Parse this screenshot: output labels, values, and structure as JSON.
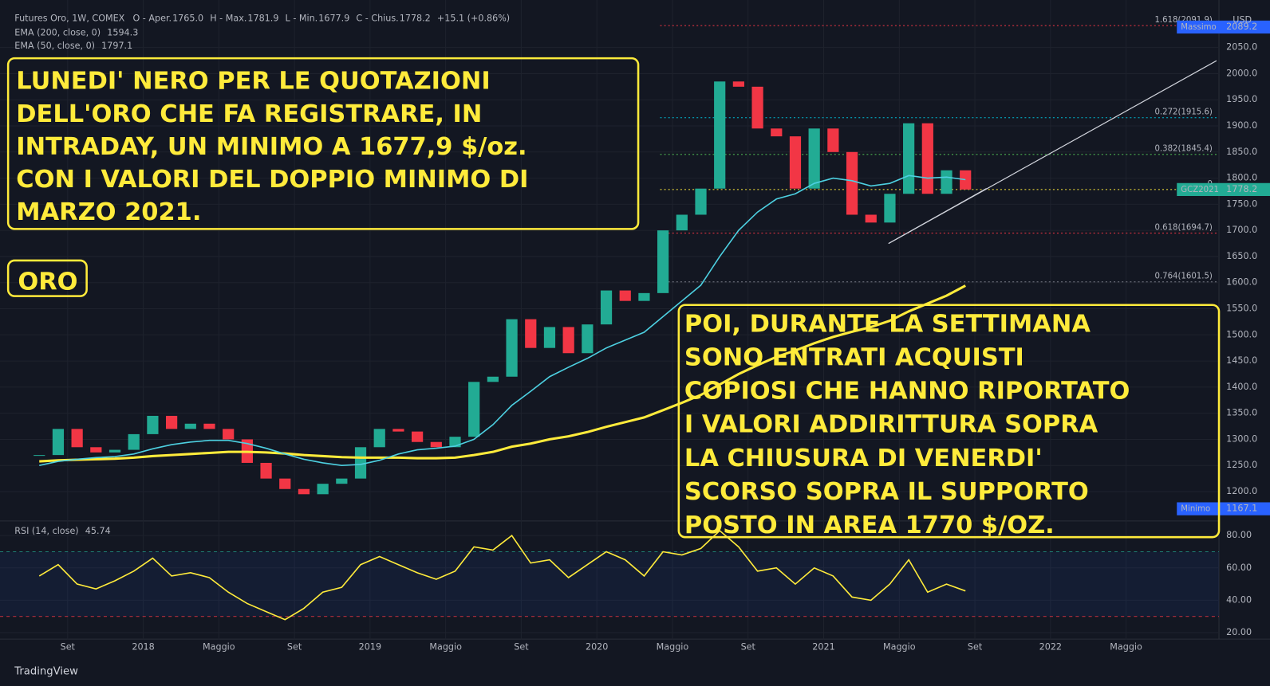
{
  "header": {
    "symbol": "Futures Oro, 1W, COMEX",
    "ohlc": [
      "O - Aper.",
      "1765.0",
      "H - Max.",
      "1781.9",
      "L - Min.",
      "1677.9",
      "C - Chius.",
      "1778.2",
      "+15.1 (+0.86%)"
    ],
    "currency": "USD",
    "brand": "TradingView"
  },
  "chart_data": [
    {
      "type": "candlestick",
      "x": [
        "2017-07",
        "2017-08",
        "2017-09",
        "2017-10",
        "2017-11",
        "2017-12",
        "2018-01",
        "2018-02",
        "2018-03",
        "2018-04",
        "2018-05",
        "2018-06",
        "2018-07",
        "2018-08",
        "2018-09",
        "2018-10",
        "2018-11",
        "2018-12",
        "2019-01",
        "2019-02",
        "2019-03",
        "2019-04",
        "2019-05",
        "2019-06",
        "2019-07",
        "2019-08",
        "2019-09",
        "2019-10",
        "2019-11",
        "2019-12",
        "2020-01",
        "2020-02",
        "2020-03",
        "2020-04",
        "2020-05",
        "2020-06",
        "2020-07",
        "2020-08",
        "2020-09",
        "2020-10",
        "2020-11",
        "2020-12",
        "2021-01",
        "2021-02",
        "2021-03",
        "2021-04",
        "2021-05",
        "2021-06",
        "2021-07",
        "2021-08"
      ],
      "close": [
        1270,
        1320,
        1285,
        1275,
        1280,
        1310,
        1345,
        1320,
        1330,
        1320,
        1300,
        1255,
        1225,
        1205,
        1195,
        1215,
        1225,
        1285,
        1320,
        1315,
        1295,
        1285,
        1305,
        1410,
        1420,
        1530,
        1475,
        1515,
        1465,
        1520,
        1585,
        1565,
        1580,
        1700,
        1730,
        1780,
        1985,
        1975,
        1895,
        1880,
        1780,
        1895,
        1850,
        1730,
        1715,
        1770,
        1905,
        1770,
        1815,
        1778.2
      ],
      "up_color": "#22ab94",
      "down_color": "#f23645",
      "series": [
        {
          "name": "EMA (200, close, 0)",
          "color": "#ffeb3b",
          "values": [
            1258,
            1260,
            1261,
            1262,
            1263,
            1265,
            1268,
            1270,
            1272,
            1274,
            1276,
            1276,
            1275,
            1273,
            1270,
            1268,
            1266,
            1265,
            1265,
            1265,
            1264,
            1264,
            1265,
            1270,
            1276,
            1286,
            1292,
            1300,
            1306,
            1314,
            1324,
            1333,
            1342,
            1356,
            1370,
            1385,
            1405,
            1425,
            1442,
            1458,
            1470,
            1484,
            1496,
            1506,
            1515,
            1527,
            1545,
            1560,
            1575,
            1594.3
          ]
        },
        {
          "name": "EMA (50, close, 0)",
          "color": "#4dd0e1",
          "values": [
            1250,
            1258,
            1262,
            1265,
            1267,
            1272,
            1282,
            1290,
            1295,
            1298,
            1298,
            1292,
            1283,
            1272,
            1262,
            1255,
            1250,
            1252,
            1260,
            1272,
            1280,
            1283,
            1287,
            1300,
            1328,
            1365,
            1392,
            1420,
            1438,
            1455,
            1475,
            1490,
            1505,
            1535,
            1565,
            1595,
            1650,
            1700,
            1735,
            1760,
            1770,
            1790,
            1800,
            1795,
            1785,
            1790,
            1805,
            1800,
            1802,
            1797.1
          ]
        }
      ],
      "xlim": [
        "2017-06",
        "2022-10"
      ],
      "xticks": [
        {
          "value": "2017-09",
          "label": "Set"
        },
        {
          "value": "2018-01",
          "label": "2018"
        },
        {
          "value": "2018-05",
          "label": "Maggio"
        },
        {
          "value": "2018-09",
          "label": "Set"
        },
        {
          "value": "2019-01",
          "label": "2019"
        },
        {
          "value": "2019-05",
          "label": "Maggio"
        },
        {
          "value": "2019-09",
          "label": "Set"
        },
        {
          "value": "2020-01",
          "label": "2020"
        },
        {
          "value": "2020-05",
          "label": "Maggio"
        },
        {
          "value": "2020-09",
          "label": "Set"
        },
        {
          "value": "2021-01",
          "label": "2021"
        },
        {
          "value": "2021-05",
          "label": "Maggio"
        },
        {
          "value": "2021-09",
          "label": "Set"
        },
        {
          "value": "2022-01",
          "label": "2022"
        },
        {
          "value": "2022-05",
          "label": "Maggio"
        }
      ],
      "ylim": [
        1150,
        2110
      ],
      "yticks": [
        {
          "value": 1200,
          "label": "1200.0"
        },
        {
          "value": 1250,
          "label": "1250.0"
        },
        {
          "value": 1300,
          "label": "1300.0"
        },
        {
          "value": 1350,
          "label": "1350.0"
        },
        {
          "value": 1400,
          "label": "1400.0"
        },
        {
          "value": 1450,
          "label": "1450.0"
        },
        {
          "value": 1500,
          "label": "1500.0"
        },
        {
          "value": 1550,
          "label": "1550.0"
        },
        {
          "value": 1600,
          "label": "1600.0"
        },
        {
          "value": 1650,
          "label": "1650.0"
        },
        {
          "value": 1700,
          "label": "1700.0"
        },
        {
          "value": 1750,
          "label": "1750.0"
        },
        {
          "value": 1800,
          "label": "1800.0"
        },
        {
          "value": 1850,
          "label": "1850.0"
        },
        {
          "value": 1900,
          "label": "1900.0"
        },
        {
          "value": 1950,
          "label": "1950.0"
        },
        {
          "value": 2000,
          "label": "2000.0"
        },
        {
          "value": 2050,
          "label": "2050.0"
        }
      ],
      "grid": true,
      "fib_levels": [
        {
          "label": "1.618(2091.9)",
          "value": 2091.9,
          "color": "#f23645"
        },
        {
          "label": "0.272(1915.6)",
          "value": 1915.6,
          "color": "#00bcd4"
        },
        {
          "label": "0.382(1845.4)",
          "value": 1845.4,
          "color": "#4caf50"
        },
        {
          "label": "0",
          "value": 1778.2,
          "color": "#ffeb3b"
        },
        {
          "label": "0.618(1694.7)",
          "value": 1694.7,
          "color": "#f23645"
        },
        {
          "label": "0.764(1601.5)",
          "value": 1601.5,
          "color": "#787b86"
        }
      ],
      "price_labels": [
        {
          "name": "Massimo",
          "value": 2089.2,
          "color": "#2962ff"
        },
        {
          "name": "Minimo",
          "value": 1167.1,
          "color": "#2962ff"
        },
        {
          "name": "GCZ2021",
          "value": 1778.2,
          "color": "#22ab94"
        }
      ]
    },
    {
      "type": "line",
      "x": [
        "2017-07",
        "2017-08",
        "2017-09",
        "2017-10",
        "2017-11",
        "2017-12",
        "2018-01",
        "2018-02",
        "2018-03",
        "2018-04",
        "2018-05",
        "2018-06",
        "2018-07",
        "2018-08",
        "2018-09",
        "2018-10",
        "2018-11",
        "2018-12",
        "2019-01",
        "2019-02",
        "2019-03",
        "2019-04",
        "2019-05",
        "2019-06",
        "2019-07",
        "2019-08",
        "2019-09",
        "2019-10",
        "2019-11",
        "2019-12",
        "2020-01",
        "2020-02",
        "2020-03",
        "2020-04",
        "2020-05",
        "2020-06",
        "2020-07",
        "2020-08",
        "2020-09",
        "2020-10",
        "2020-11",
        "2020-12",
        "2021-01",
        "2021-02",
        "2021-03",
        "2021-04",
        "2021-05",
        "2021-06",
        "2021-07",
        "2021-08"
      ],
      "series": [
        {
          "name": "RSI (14, close)",
          "color": "#ffeb3b",
          "values": [
            55,
            62,
            50,
            47,
            52,
            58,
            66,
            55,
            57,
            54,
            45,
            38,
            33,
            28,
            35,
            45,
            48,
            62,
            67,
            62,
            57,
            53,
            58,
            73,
            71,
            80,
            63,
            65,
            54,
            62,
            70,
            65,
            55,
            70,
            68,
            72,
            83,
            73,
            58,
            60,
            50,
            60,
            55,
            42,
            40,
            50,
            65,
            45,
            50,
            45.74
          ]
        }
      ],
      "ylim": [
        16,
        87
      ],
      "yticks": [
        {
          "value": 20,
          "label": "20.00"
        },
        {
          "value": 40,
          "label": "40.00"
        },
        {
          "value": 60,
          "label": "60.00"
        },
        {
          "value": 80,
          "label": "80.00"
        }
      ],
      "bands": [
        70,
        30
      ]
    }
  ],
  "annotations": {
    "box1": [
      "LUNEDI' NERO PER LE QUOTAZIONI",
      "DELL'ORO CHE FA REGISTRARE, IN",
      "INTRADAY, UN MINIMO A 1677,9 $/oz.",
      "CON I VALORI DEL DOPPIO MINIMO DI",
      "MARZO 2021."
    ],
    "tag": "ORO",
    "box2": [
      "POI, DURANTE LA SETTIMANA",
      "SONO ENTRATI ACQUISTI",
      "COPIOSI CHE HANNO RIPORTATO",
      "I VALORI ADDIRITTURA SOPRA",
      "LA CHIUSURA DI VENERDI'",
      "SCORSO  SOPRA IL SUPPORTO",
      "POSTO IN AREA 1770 $/OZ."
    ]
  }
}
